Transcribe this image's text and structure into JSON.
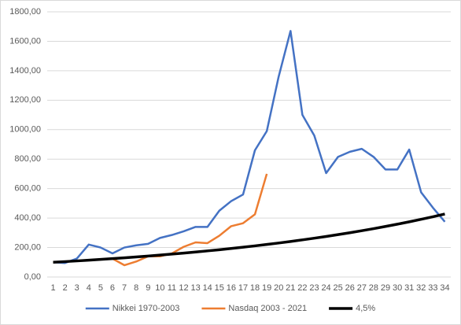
{
  "chart_data": {
    "type": "line",
    "categories": [
      "1",
      "2",
      "3",
      "4",
      "5",
      "6",
      "7",
      "8",
      "9",
      "10",
      "11",
      "12",
      "13",
      "14",
      "15",
      "16",
      "17",
      "18",
      "19",
      "20",
      "21",
      "22",
      "23",
      "24",
      "25",
      "26",
      "27",
      "28",
      "29",
      "30",
      "31",
      "32",
      "33",
      "34"
    ],
    "series": [
      {
        "name": "Nikkei 1970-2003",
        "color": "#4472c4",
        "width": 2.5,
        "values": [
          100,
          95,
          125,
          220,
          200,
          160,
          200,
          215,
          225,
          265,
          285,
          310,
          340,
          340,
          450,
          515,
          560,
          860,
          990,
          1360,
          1670,
          1100,
          960,
          705,
          815,
          850,
          870,
          815,
          730,
          730,
          865,
          575,
          470,
          375
        ]
      },
      {
        "name": "Nasdaq 2003 - 2021",
        "color": "#ed7d31",
        "width": 2.5,
        "values": [
          100,
          105,
          110,
          115,
          120,
          125,
          80,
          105,
          140,
          140,
          160,
          205,
          235,
          230,
          280,
          345,
          365,
          425,
          700,
          null,
          null,
          null,
          null,
          null,
          null,
          null,
          null,
          null,
          null,
          null,
          null,
          null,
          null,
          null
        ]
      },
      {
        "name": "4,5%",
        "color": "#000000",
        "width": 3.5,
        "values": [
          100,
          104.5,
          109.2,
          114.1,
          119.3,
          124.6,
          130.2,
          136.1,
          142.2,
          148.6,
          155.3,
          162.3,
          169.6,
          177.2,
          185.2,
          193.5,
          202.2,
          211.3,
          220.8,
          230.7,
          241.2,
          252,
          263.4,
          275.2,
          287.6,
          300.5,
          314.1,
          328.2,
          343,
          358.4,
          374.5,
          391.4,
          409,
          427.4
        ]
      }
    ],
    "ylim": [
      0,
      1800
    ],
    "yticks": [
      {
        "value": 0,
        "label": "0,00"
      },
      {
        "value": 200,
        "label": "200,00"
      },
      {
        "value": 400,
        "label": "400,00"
      },
      {
        "value": 600,
        "label": "600,00"
      },
      {
        "value": 800,
        "label": "800,00"
      },
      {
        "value": 1000,
        "label": "1000,00"
      },
      {
        "value": 1200,
        "label": "1200,00"
      },
      {
        "value": 1400,
        "label": "1400,00"
      },
      {
        "value": 1600,
        "label": "1600,00"
      },
      {
        "value": 1800,
        "label": "1800,00"
      }
    ],
    "grid": true,
    "legend": "bottom"
  }
}
